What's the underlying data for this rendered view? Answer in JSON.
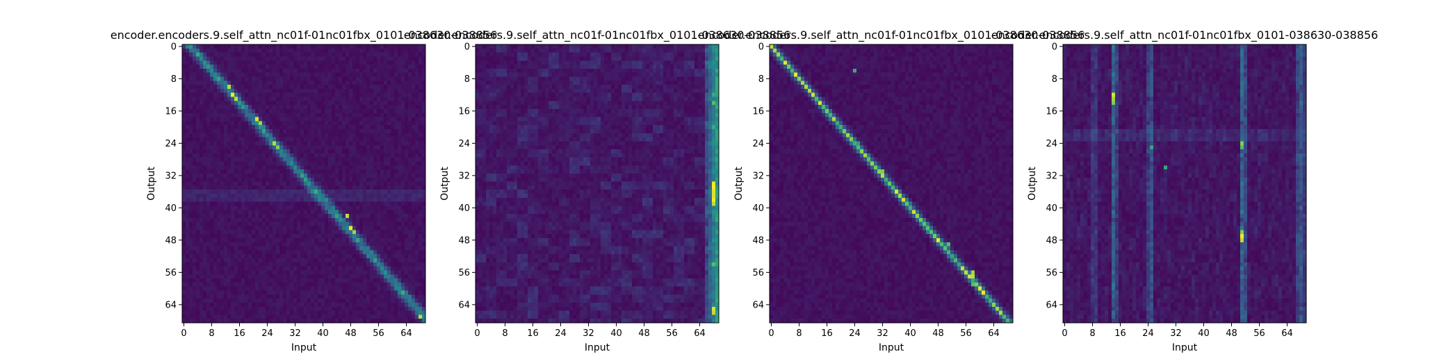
{
  "colormap": [
    "#440154",
    "#3b528b",
    "#21918c",
    "#5ec962",
    "#fde725"
  ],
  "chart_data": [
    {
      "type": "heatmap",
      "title": "encoder.encoders.9.self_attn_nc01f-01nc01fbx_0101-038630-038856",
      "xlabel": "Input",
      "ylabel": "Output",
      "xlim": [
        0,
        70
      ],
      "ylim": [
        0,
        69
      ],
      "xticks": [
        "0",
        "8",
        "16",
        "24",
        "32",
        "40",
        "48",
        "56",
        "64"
      ],
      "yticks": [
        "0",
        "8",
        "16",
        "24",
        "32",
        "40",
        "48",
        "56",
        "64"
      ],
      "pattern": "diagonal",
      "highlights": [
        [
          13,
          10,
          0.9
        ],
        [
          14,
          12,
          1.0
        ],
        [
          15,
          13,
          0.9
        ],
        [
          21,
          18,
          0.95
        ],
        [
          22,
          19,
          0.85
        ],
        [
          26,
          24,
          0.9
        ],
        [
          27,
          25,
          0.8
        ],
        [
          47,
          42,
          0.9
        ],
        [
          48,
          45,
          1.0
        ],
        [
          49,
          46,
          0.85
        ],
        [
          68,
          67,
          0.9
        ]
      ]
    },
    {
      "type": "heatmap",
      "title": "encoder.encoders.9.self_attn_nc01f-01nc01fbx_0101-038630-038856",
      "xlabel": "Input",
      "ylabel": "Output",
      "xlim": [
        0,
        70
      ],
      "ylim": [
        0,
        69
      ],
      "xticks": [
        "0",
        "8",
        "16",
        "24",
        "32",
        "40",
        "48",
        "56",
        "64"
      ],
      "yticks": [
        "0",
        "8",
        "16",
        "24",
        "32",
        "40",
        "48",
        "56",
        "64"
      ],
      "pattern": "right-edge",
      "highlights": [
        [
          68,
          34,
          1.0
        ],
        [
          68,
          35,
          1.0
        ],
        [
          68,
          36,
          0.95
        ],
        [
          68,
          37,
          0.95
        ],
        [
          68,
          38,
          1.0
        ],
        [
          68,
          39,
          0.9
        ],
        [
          68,
          65,
          0.95
        ],
        [
          68,
          66,
          0.9
        ],
        [
          68,
          14,
          0.7
        ],
        [
          68,
          12,
          0.6
        ],
        [
          68,
          20,
          0.6
        ],
        [
          68,
          54,
          0.7
        ]
      ]
    },
    {
      "type": "heatmap",
      "title": "encoder.encoders.9.self_attn_nc01f-01nc01fbx_0101-038630-038856",
      "xlabel": "Input",
      "ylabel": "Output",
      "xlim": [
        0,
        70
      ],
      "ylim": [
        0,
        69
      ],
      "xticks": [
        "0",
        "8",
        "16",
        "24",
        "32",
        "40",
        "48",
        "56",
        "64"
      ],
      "yticks": [
        "0",
        "8",
        "16",
        "24",
        "32",
        "40",
        "48",
        "56",
        "64"
      ],
      "pattern": "sharp-diagonal",
      "highlights": [
        [
          24,
          6,
          0.6
        ],
        [
          32,
          32,
          0.9
        ],
        [
          32,
          31,
          0.8
        ],
        [
          51,
          49,
          0.7
        ],
        [
          51,
          51,
          0.65
        ],
        [
          58,
          56,
          0.85
        ],
        [
          58,
          57,
          0.9
        ],
        [
          58,
          59,
          0.7
        ],
        [
          25,
          24,
          0.55
        ]
      ]
    },
    {
      "type": "heatmap",
      "title": "encoder.encoders.9.self_attn_nc01f-01nc01fbx_0101-038630-038856",
      "xlabel": "Input",
      "ylabel": "Output",
      "xlim": [
        0,
        70
      ],
      "ylim": [
        0,
        69
      ],
      "xticks": [
        "0",
        "8",
        "16",
        "24",
        "32",
        "40",
        "48",
        "56",
        "64"
      ],
      "yticks": [
        "0",
        "8",
        "16",
        "24",
        "32",
        "40",
        "48",
        "56",
        "64"
      ],
      "pattern": "vertical-bands",
      "highlights": [
        [
          14,
          12,
          0.95
        ],
        [
          14,
          13,
          0.85
        ],
        [
          14,
          14,
          0.8
        ],
        [
          51,
          47,
          1.0
        ],
        [
          51,
          48,
          0.9
        ],
        [
          51,
          46,
          0.8
        ],
        [
          51,
          24,
          0.8
        ],
        [
          51,
          25,
          0.7
        ],
        [
          25,
          25,
          0.6
        ],
        [
          29,
          30,
          0.6
        ]
      ]
    }
  ]
}
